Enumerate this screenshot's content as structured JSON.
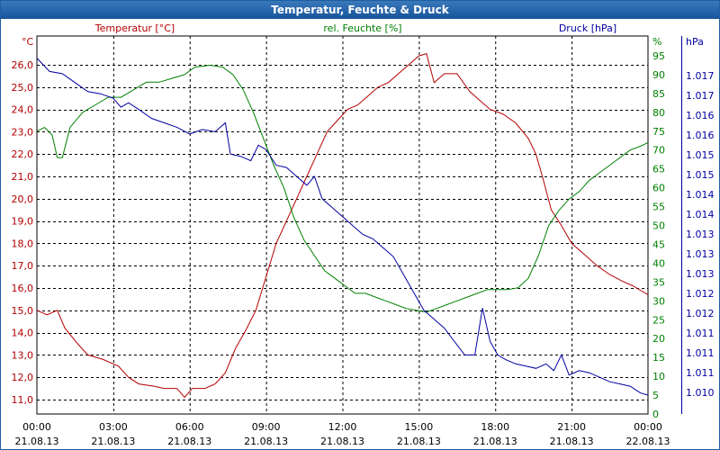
{
  "window": {
    "title": "Temperatur, Feuchte & Druck"
  },
  "colors": {
    "temperature": "#b40000",
    "humidity": "#008000",
    "pressure": "#0000a0",
    "grid": "#000000",
    "text": "#000000",
    "titlebar": "#1f5fa0"
  },
  "chart_data": {
    "type": "line",
    "title": "Temperatur, Feuchte & Druck",
    "grid": true,
    "x_ticks": [
      {
        "time": "00:00",
        "date": "21.08.13"
      },
      {
        "time": "03:00",
        "date": "21.08.13"
      },
      {
        "time": "06:00",
        "date": "21.08.13"
      },
      {
        "time": "09:00",
        "date": "21.08.13"
      },
      {
        "time": "12:00",
        "date": "21.08.13"
      },
      {
        "time": "15:00",
        "date": "21.08.13"
      },
      {
        "time": "18:00",
        "date": "21.08.13"
      },
      {
        "time": "21:00",
        "date": "21.08.13"
      },
      {
        "time": "00:00",
        "date": "22.08.13"
      }
    ],
    "x_hours": [
      0,
      24
    ],
    "axes": {
      "left": {
        "label": "Temperatur [°C]",
        "unit": "°C",
        "ylim": [
          10.3,
          27.4
        ],
        "ticks": [
          "11,0",
          "12,0",
          "13,0",
          "14,0",
          "15,0",
          "16,0",
          "17,0",
          "18,0",
          "19,0",
          "20,0",
          "21,0",
          "22,0",
          "23,0",
          "24,0",
          "25,0",
          "26,0"
        ]
      },
      "right1": {
        "label": "rel. Feuchte [%]",
        "unit": "%",
        "ylim": [
          0,
          100
        ],
        "ticks": [
          "0",
          "5",
          "10",
          "15",
          "20",
          "25",
          "30",
          "35",
          "40",
          "45",
          "50",
          "55",
          "60",
          "65",
          "70",
          "75",
          "80",
          "85",
          "90",
          "95"
        ]
      },
      "right2": {
        "label": "Druck [hPa]",
        "unit": "hPa",
        "ticks": [
          "1.010",
          "1.011",
          "1.011",
          "1.011",
          "1.012",
          "1.012",
          "1.013",
          "1.013",
          "1.013",
          "1.014",
          "1.014",
          "1.015",
          "1.015",
          "1.016",
          "1.016",
          "1.017",
          "1.017"
        ]
      }
    },
    "series": [
      {
        "name": "Temperatur [°C]",
        "axis": "left",
        "color": "#b40000",
        "points": [
          [
            0,
            15.0
          ],
          [
            0.4,
            14.8
          ],
          [
            0.8,
            15.0
          ],
          [
            1.1,
            14.2
          ],
          [
            1.6,
            13.5
          ],
          [
            2.0,
            13.0
          ],
          [
            2.6,
            12.8
          ],
          [
            3.2,
            12.5
          ],
          [
            3.6,
            12.0
          ],
          [
            4.0,
            11.7
          ],
          [
            4.6,
            11.6
          ],
          [
            5.0,
            11.5
          ],
          [
            5.5,
            11.5
          ],
          [
            5.8,
            11.1
          ],
          [
            6.1,
            11.5
          ],
          [
            6.6,
            11.5
          ],
          [
            7.0,
            11.7
          ],
          [
            7.4,
            12.2
          ],
          [
            7.8,
            13.3
          ],
          [
            8.2,
            14.1
          ],
          [
            8.6,
            15.0
          ],
          [
            9.0,
            16.5
          ],
          [
            9.4,
            18.0
          ],
          [
            9.8,
            19.0
          ],
          [
            10.2,
            20.0
          ],
          [
            10.6,
            21.0
          ],
          [
            11.0,
            22.0
          ],
          [
            11.4,
            23.0
          ],
          [
            11.8,
            23.5
          ],
          [
            12.2,
            24.0
          ],
          [
            12.6,
            24.2
          ],
          [
            13.0,
            24.6
          ],
          [
            13.4,
            25.0
          ],
          [
            13.8,
            25.2
          ],
          [
            14.2,
            25.6
          ],
          [
            14.6,
            26.0
          ],
          [
            15.0,
            26.4
          ],
          [
            15.3,
            26.5
          ],
          [
            15.6,
            25.2
          ],
          [
            16.0,
            25.6
          ],
          [
            16.5,
            25.6
          ],
          [
            17.0,
            24.8
          ],
          [
            17.4,
            24.4
          ],
          [
            17.8,
            24.0
          ],
          [
            18.3,
            23.8
          ],
          [
            18.8,
            23.4
          ],
          [
            19.3,
            22.7
          ],
          [
            19.6,
            22.0
          ],
          [
            19.9,
            20.8
          ],
          [
            20.2,
            19.5
          ],
          [
            20.6,
            18.8
          ],
          [
            21.0,
            18.0
          ],
          [
            21.5,
            17.5
          ],
          [
            22.0,
            17.0
          ],
          [
            22.5,
            16.6
          ],
          [
            23.0,
            16.3
          ],
          [
            23.4,
            16.1
          ],
          [
            23.7,
            15.9
          ],
          [
            24.0,
            15.7
          ]
        ]
      },
      {
        "name": "rel. Feuchte [%]",
        "axis": "right1",
        "color": "#008000",
        "points": [
          [
            0,
            75
          ],
          [
            0.3,
            76
          ],
          [
            0.6,
            74
          ],
          [
            0.8,
            68
          ],
          [
            1.0,
            68
          ],
          [
            1.3,
            76
          ],
          [
            1.8,
            80
          ],
          [
            2.3,
            82
          ],
          [
            2.8,
            84
          ],
          [
            3.3,
            84
          ],
          [
            3.8,
            86
          ],
          [
            4.3,
            88
          ],
          [
            4.8,
            88
          ],
          [
            5.3,
            89
          ],
          [
            5.8,
            90
          ],
          [
            6.2,
            92
          ],
          [
            6.8,
            92.5
          ],
          [
            7.3,
            92
          ],
          [
            7.7,
            90
          ],
          [
            8.1,
            86
          ],
          [
            8.5,
            80
          ],
          [
            8.9,
            73
          ],
          [
            9.3,
            66
          ],
          [
            9.7,
            60
          ],
          [
            10.1,
            52
          ],
          [
            10.5,
            46
          ],
          [
            10.9,
            42
          ],
          [
            11.3,
            38
          ],
          [
            11.7,
            36
          ],
          [
            12.1,
            34
          ],
          [
            12.5,
            32
          ],
          [
            12.9,
            32
          ],
          [
            13.3,
            31
          ],
          [
            13.7,
            30
          ],
          [
            14.1,
            29
          ],
          [
            14.5,
            28
          ],
          [
            14.9,
            27.5
          ],
          [
            15.3,
            27
          ],
          [
            15.7,
            28
          ],
          [
            16.1,
            29
          ],
          [
            16.5,
            30
          ],
          [
            16.9,
            31
          ],
          [
            17.3,
            32
          ],
          [
            17.7,
            33
          ],
          [
            18.1,
            33
          ],
          [
            18.5,
            33
          ],
          [
            18.9,
            33.5
          ],
          [
            19.3,
            36
          ],
          [
            19.7,
            42
          ],
          [
            20.1,
            50
          ],
          [
            20.5,
            54
          ],
          [
            20.9,
            57
          ],
          [
            21.3,
            59
          ],
          [
            21.7,
            62
          ],
          [
            22.1,
            64
          ],
          [
            22.5,
            66
          ],
          [
            22.9,
            68
          ],
          [
            23.3,
            70
          ],
          [
            23.7,
            71
          ],
          [
            24.0,
            72
          ]
        ]
      },
      {
        "name": "Druck [hPa]",
        "axis": "right2",
        "color": "#0000a0",
        "points": [
          [
            0,
            26.3
          ],
          [
            0.5,
            25.7
          ],
          [
            1.0,
            25.6
          ],
          [
            1.5,
            25.2
          ],
          [
            2.0,
            24.8
          ],
          [
            2.5,
            24.7
          ],
          [
            3.0,
            24.5
          ],
          [
            3.3,
            24.1
          ],
          [
            3.6,
            24.3
          ],
          [
            4.0,
            24.0
          ],
          [
            4.5,
            23.6
          ],
          [
            5.0,
            23.4
          ],
          [
            5.5,
            23.2
          ],
          [
            6.0,
            22.9
          ],
          [
            6.5,
            23.1
          ],
          [
            7.0,
            23.0
          ],
          [
            7.4,
            23.4
          ],
          [
            7.6,
            22.0
          ],
          [
            8.0,
            21.9
          ],
          [
            8.4,
            21.7
          ],
          [
            8.7,
            22.4
          ],
          [
            9.0,
            22.2
          ],
          [
            9.4,
            21.5
          ],
          [
            9.8,
            21.4
          ],
          [
            10.2,
            21.0
          ],
          [
            10.6,
            20.6
          ],
          [
            10.9,
            21.0
          ],
          [
            11.2,
            20.0
          ],
          [
            11.6,
            19.6
          ],
          [
            12.0,
            19.2
          ],
          [
            12.4,
            18.8
          ],
          [
            12.8,
            18.4
          ],
          [
            13.2,
            18.2
          ],
          [
            13.6,
            17.8
          ],
          [
            14.0,
            17.4
          ],
          [
            14.4,
            16.6
          ],
          [
            14.8,
            15.8
          ],
          [
            15.2,
            15.0
          ],
          [
            15.6,
            14.6
          ],
          [
            16.0,
            14.2
          ],
          [
            16.4,
            13.6
          ],
          [
            16.8,
            13.0
          ],
          [
            17.2,
            13.0
          ],
          [
            17.5,
            15.1
          ],
          [
            17.8,
            13.6
          ],
          [
            18.1,
            13.0
          ],
          [
            18.4,
            12.8
          ],
          [
            18.8,
            12.6
          ],
          [
            19.2,
            12.5
          ],
          [
            19.6,
            12.4
          ],
          [
            20.0,
            12.6
          ],
          [
            20.3,
            12.3
          ],
          [
            20.6,
            13.0
          ],
          [
            20.9,
            12.1
          ],
          [
            21.3,
            12.3
          ],
          [
            21.7,
            12.2
          ],
          [
            22.1,
            12.0
          ],
          [
            22.5,
            11.8
          ],
          [
            22.9,
            11.7
          ],
          [
            23.3,
            11.6
          ],
          [
            23.7,
            11.3
          ],
          [
            24.0,
            11.2
          ]
        ]
      }
    ]
  }
}
